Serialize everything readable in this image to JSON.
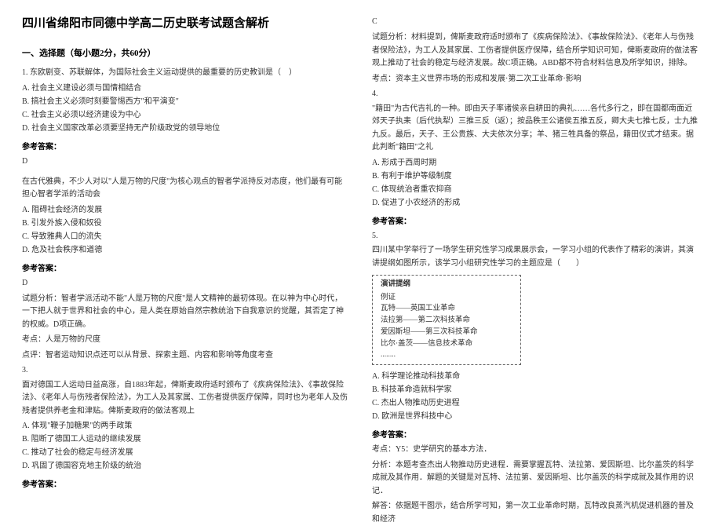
{
  "doc": {
    "title": "四川省绵阳市同德中学高二历史联考试题含解析",
    "section1": "一、选择题（每小题2分，共60分）",
    "q1": {
      "stem": "1. 东欧剧变、苏联解体，为国际社会主义运动提供的最重要的历史教训是（　）",
      "a": "A. 社会主义建设必须与国情相结合",
      "b": "B. 搞社会主义必须时刻要警惕西方\"和平演变\"",
      "c": "C. 社会主义必须以经济建设为中心",
      "d": "D. 社会主义国家改革必须要坚持无产阶级政党的领导地位",
      "ansLabel": "参考答案：",
      "ans": "D"
    },
    "q2": {
      "stem": "在古代雅典，不少人对以\"人是万物的尺度\"为核心观点的智者学派持反对态度，他们最有可能担心智者学派的活动会",
      "a": "A. 阻碍社会经济的发展",
      "b": "B. 引发外族入侵和奴役",
      "c": "C. 导致雅典人口的流失",
      "d": "D. 危及社会秩序和道德",
      "ansLabel": "参考答案：",
      "ans": "D",
      "exp1": "试题分析：智者学派活动不能\"人是万物的尺度\"是人文精神的最初体现。在以神为中心时代，一下把人就于世界和社会的中心，是人类在原始自然宗教统治下自我意识的觉醒，其否定了神的权威。D项正确。",
      "exp2": "考点：人是万物的尺度",
      "exp3": "点评：智者运动知识点还可以从背景、探索主题、内容和影响等角度考查"
    },
    "q3": {
      "num": "3.",
      "stem": "面对德国工人运动日益高涨，自1883年起，俾斯麦政府适时颁布了《疾病保险法》、《事故保险法》、《老年人与伤残者保险法》，为工人及其家属、工伤者提供医疗保障，同时也为老年人及伤残者提供养老金和津贴。俾斯麦政府的做法客观上",
      "a": "A. 体现\"鞭子加糖果\"的两手政策",
      "b": "B. 阻断了德国工人运动的继续发展",
      "c": "C. 推动了社会的稳定与经济发展",
      "d": "D. 巩固了德国容克地主阶级的统治",
      "ansLabel": "参考答案：",
      "ans": "C",
      "exp1": "试题分析：材料提到，俾斯麦政府适时颁布了《疾病保险法》、《事故保险法》、《老年人与伤残者保险法》，为工人及其家属、工伤者提供医疗保障，结合所学知识可知，俾斯麦政府的做法客观上推动了社会的稳定与经济发展。故C项正确。ABD都不符合材料信息及所学知识，排除。",
      "exp2": "考点：资本主义世界市场的形成和发展·第二次工业革命·影响"
    },
    "q4": {
      "num": "4.",
      "stem": "\"籍田\"为古代吉礼的一种。即由天子率诸侯亲自耕田的典礼……各代多行之，即在国都南面近郊天子执耒（后代执犁）三推三反（返）；按品秩王公诸侯五推五反，卿大夫七推七反，士九推九反。最后，天子、王公贵族、大夫依次分享；羊、猪三牲具备的祭品，籍田仪式才结束。据此判断\"籍田\"之礼",
      "a": "A. 形成于西周时期",
      "b": "B. 有利于维护等级制度",
      "c": "C. 体现统治者重农抑商",
      "d": "D. 促进了小农经济的形成",
      "ansLabel": "参考答案："
    },
    "q5": {
      "num": "5.",
      "stem": "四川某中学举行了一场学生研究性学习成果展示会，一学习小组的代表作了精彩的演讲，其演讲提纲如图所示，该学习小组研究性学习的主题应是（　　）",
      "box": {
        "title": "演讲提纲",
        "l1": "例证",
        "l2": "瓦特——英国工业革命",
        "l3": "法拉第——第二次科技革命",
        "l4": "爱因斯坦——第三次科技革命",
        "l5": "比尔·盖茨——信息技术革命",
        "l6": "........"
      },
      "a": "A. 科学理论推动科技革命",
      "b": "B. 科技革命造就科学家",
      "c": "C. 杰出人物推动历史进程",
      "d": "D. 欧洲是世界科技中心",
      "ansLabel": "参考答案：",
      "exp1": "考点：Y5：史学研究的基本方法．",
      "exp2": "分析：本题考查杰出人物推动历史进程．需要掌握瓦特、法拉第、爱因斯坦、比尔盖茨的科学成就及其作用．解题的关键是对瓦特、法拉第、爱因斯坦、比尔盖茨的科学成就及其作用的识记．",
      "exp3": "解答：依据题干图示，结合所学可知，第一次工业革命时期，瓦特改良蒸汽机促进机器的普及和经济"
    }
  },
  "style": {
    "bg": "#ffffff",
    "text": "#333333",
    "heading": "#000000",
    "border": "#666666",
    "titleSize": 15,
    "bodySize": 10
  }
}
